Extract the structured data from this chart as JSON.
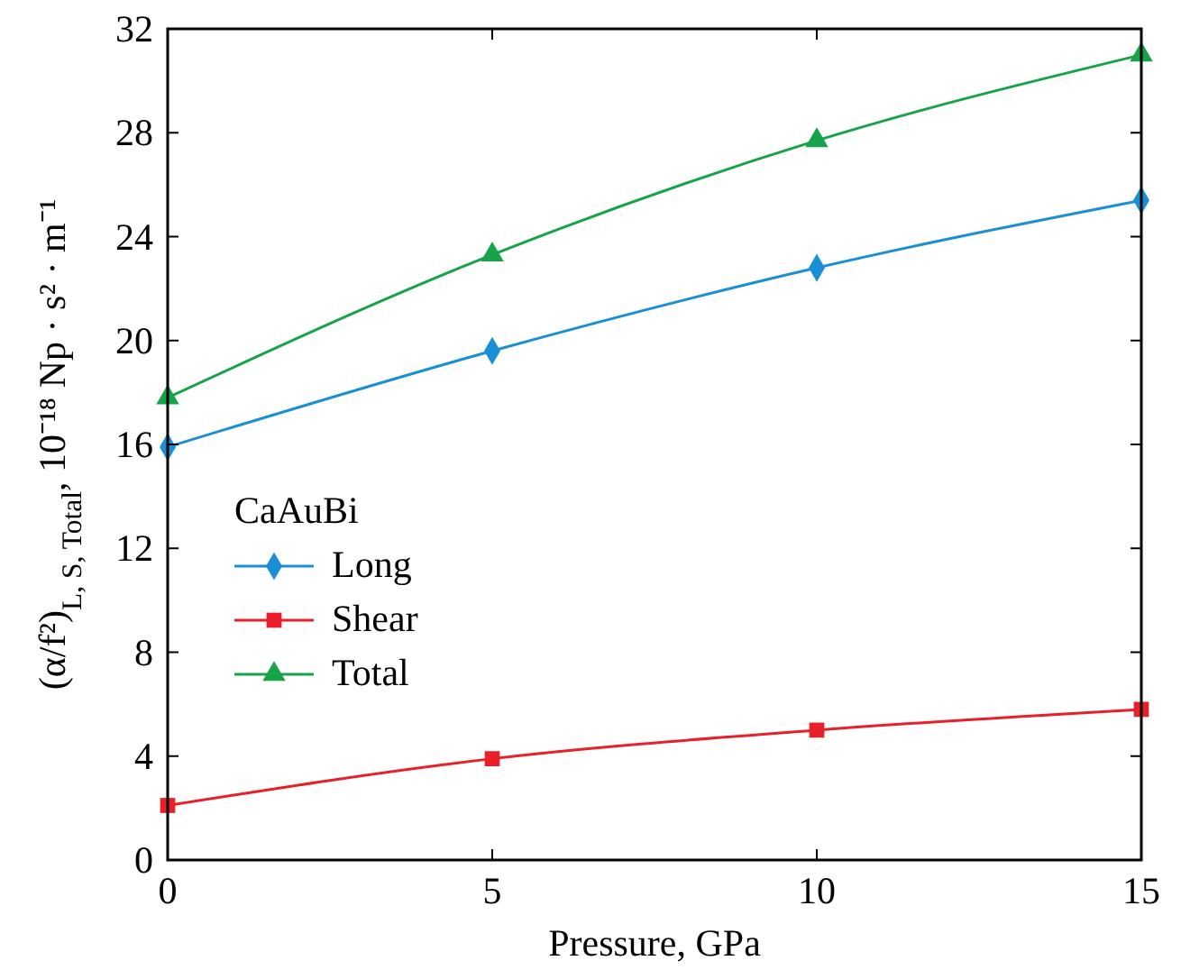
{
  "chart_data": {
    "type": "line",
    "xlabel": "Pressure, GPa",
    "ylabel": "(α/f²)$_{L, S, Total}$, 10⁻¹⁸ Np · s² · m⁻¹",
    "legend_title": "CaAuBi",
    "x": [
      0,
      5,
      10,
      15
    ],
    "series": [
      {
        "name": "Long",
        "color": "#1a8fd6",
        "values": [
          15.9,
          19.6,
          22.8,
          25.4
        ],
        "marker": "diamond"
      },
      {
        "name": "Shear",
        "color": "#e8202a",
        "values": [
          2.1,
          3.9,
          5.0,
          5.8
        ],
        "marker": "square"
      },
      {
        "name": "Total",
        "color": "#16a34a",
        "values": [
          17.8,
          23.3,
          27.7,
          31.0
        ],
        "marker": "triangle"
      }
    ],
    "xlim": [
      0,
      15
    ],
    "xticks": [
      0,
      5,
      10,
      15
    ],
    "ylim": [
      0,
      32
    ],
    "yticks": [
      0,
      4,
      8,
      12,
      16,
      20,
      24,
      28,
      32
    ],
    "grid": false,
    "legend": "left",
    "line_style": "solid"
  }
}
